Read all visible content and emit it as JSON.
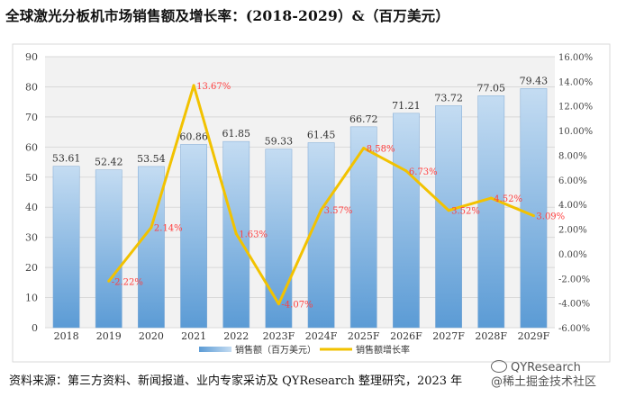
{
  "title": "全球激光分板机市场销售额及增长率：(2018-2029）&（百万美元）",
  "footer": "资料来源：第三方资料、新闻报道、业内专家采访及 QYResearch 整理研究，2023 年",
  "watermark": {
    "line1": "QYResearch",
    "line2": "@稀土掘金技术社区"
  },
  "colors": {
    "bar_top": "#c4dcf2",
    "bar_bottom": "#5b9bd5",
    "line": "#f2c200",
    "rate_label": "#ff4040",
    "plot_bg": "#f2f2f2",
    "grid": "#d9d9d9"
  },
  "chart_data": {
    "type": "bar",
    "categories": [
      "2018",
      "2019",
      "2020",
      "2021",
      "2022",
      "2023F",
      "2024F",
      "2025F",
      "2026F",
      "2027F",
      "2028F",
      "2029F"
    ],
    "series": [
      {
        "name": "销售额（百万美元）",
        "type": "bar",
        "axis": "left",
        "values": [
          53.61,
          52.42,
          53.54,
          60.86,
          61.85,
          59.33,
          61.45,
          66.72,
          71.21,
          73.72,
          77.05,
          79.43
        ],
        "labels": [
          "53.61",
          "52.42",
          "53.54",
          "60.86",
          "61.85",
          "59.33",
          "61.45",
          "66.72",
          "71.21",
          "73.72",
          "77.05",
          "79.43"
        ]
      },
      {
        "name": "销售额增长率",
        "type": "line",
        "axis": "right",
        "values": [
          null,
          -2.22,
          2.14,
          13.67,
          1.63,
          -4.07,
          3.57,
          8.58,
          6.73,
          3.52,
          4.52,
          3.09
        ],
        "labels": [
          null,
          "-2.22%",
          "2.14%",
          "13.67%",
          "1.63%",
          "-4.07%",
          "3.57%",
          "8.58%",
          "6.73%",
          "3.52%",
          "4.52%",
          "3.09%"
        ]
      }
    ],
    "left_axis": {
      "ylim": [
        0,
        90
      ],
      "ticks": [
        "0",
        "10",
        "20",
        "30",
        "40",
        "50",
        "60",
        "70",
        "80",
        "90"
      ]
    },
    "right_axis": {
      "ylim": [
        -6,
        16
      ],
      "ticks": [
        "-6.00%",
        "-4.00%",
        "-2.00%",
        "0.00%",
        "2.00%",
        "4.00%",
        "6.00%",
        "8.00%",
        "10.00%",
        "12.00%",
        "14.00%",
        "16.00%"
      ]
    },
    "legend_position": "bottom",
    "grid": true
  }
}
